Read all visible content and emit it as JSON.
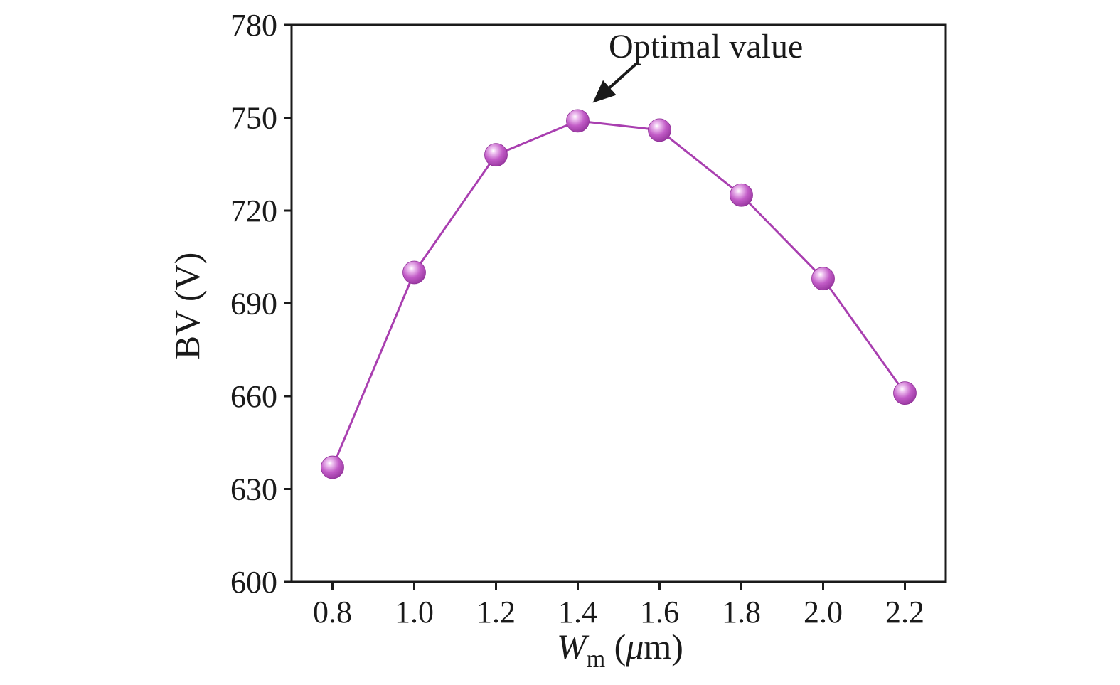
{
  "chart_data": {
    "type": "line",
    "x": [
      0.8,
      1.0,
      1.2,
      1.4,
      1.6,
      1.8,
      2.0,
      2.2
    ],
    "y": [
      637,
      700,
      738,
      749,
      746,
      725,
      698,
      661
    ],
    "xlabel": "Wm (μm)",
    "xlabel_render": {
      "variable": "W",
      "subscript": "m",
      "unit_open": " (",
      "mu": "μ",
      "unit_close": "m)"
    },
    "ylabel": "BV (V)",
    "xlim": [
      0.7,
      2.3
    ],
    "ylim": [
      600,
      780
    ],
    "x_ticks": [
      "0.8",
      "1.0",
      "1.2",
      "1.4",
      "1.6",
      "1.8",
      "2.0",
      "2.2"
    ],
    "y_ticks": [
      "600",
      "630",
      "660",
      "690",
      "720",
      "750",
      "780"
    ],
    "grid": false,
    "legend": null,
    "annotation": {
      "text": "Optimal value",
      "target_x": 1.4,
      "target_y": 749
    },
    "colors": {
      "marker": "#a93fb0",
      "marker_dark": "#8f2f97",
      "marker_light": "#efc4f1",
      "line": "#a93fb0",
      "axis": "#1a1a1a"
    }
  }
}
